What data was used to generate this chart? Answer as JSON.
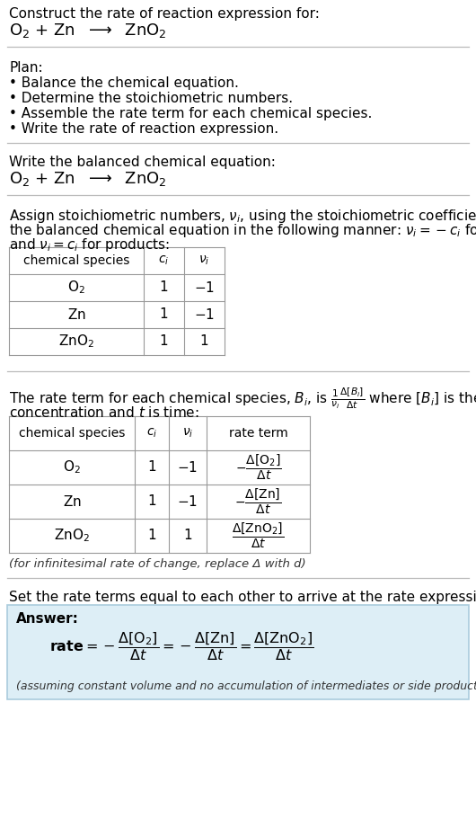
{
  "bg_color": "#ffffff",
  "text_color": "#000000",
  "answer_bg": "#ddeef6",
  "answer_border": "#aaccdd",
  "line_color": "#bbbbbb",
  "section1_title": "Construct the rate of reaction expression for:",
  "plan_title": "Plan:",
  "plan_bullets": [
    "• Balance the chemical equation.",
    "• Determine the stoichiometric numbers.",
    "• Assemble the rate term for each chemical species.",
    "• Write the rate of reaction expression."
  ],
  "balanced_title": "Write the balanced chemical equation:",
  "assign_line1": "Assign stoichiometric numbers, $\\nu_i$, using the stoichiometric coefficients, $c_i$, from",
  "assign_line2": "the balanced chemical equation in the following manner: $\\nu_i = -c_i$ for reactants",
  "assign_line3": "and $\\nu_i = c_i$ for products:",
  "rate_line1": "The rate term for each chemical species, $B_i$, is $\\frac{1}{\\nu_i}\\frac{\\Delta[B_i]}{\\Delta t}$ where $[B_i]$ is the amount",
  "rate_line2": "concentration and $t$ is time:",
  "infinitesimal_note": "(for infinitesimal rate of change, replace Δ with d)",
  "set_text": "Set the rate terms equal to each other to arrive at the rate expression:",
  "answer_label": "Answer:",
  "answer_note": "(assuming constant volume and no accumulation of intermediates or side products)"
}
